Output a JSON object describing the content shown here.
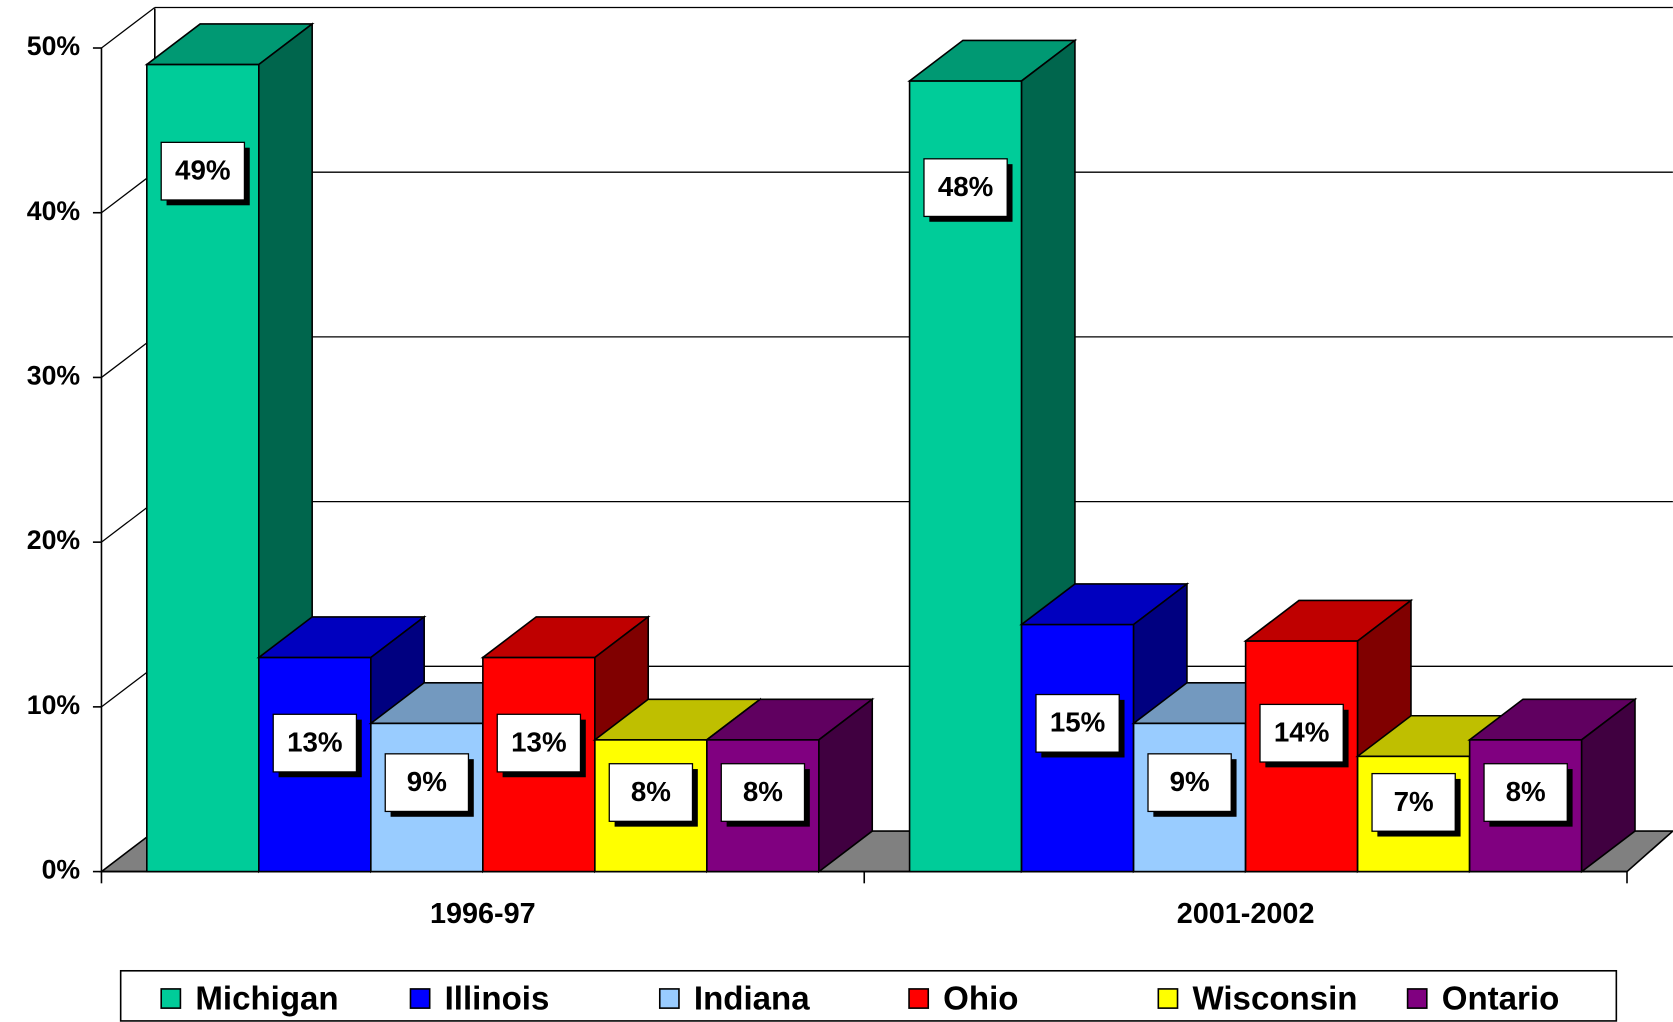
{
  "chart_data": {
    "type": "bar3d",
    "categories": [
      "1996-97",
      "2001-2002"
    ],
    "series": [
      {
        "name": "Michigan",
        "color": "#00cc99",
        "values": [
          49,
          48
        ],
        "value_labels": [
          "49%",
          "48%"
        ]
      },
      {
        "name": "Illinois",
        "color": "#0000ff",
        "values": [
          13,
          15
        ],
        "value_labels": [
          "13%",
          "15%"
        ]
      },
      {
        "name": "Indiana",
        "color": "#99ccff",
        "values": [
          9,
          9
        ],
        "value_labels": [
          "9%",
          "9%"
        ]
      },
      {
        "name": "Ohio",
        "color": "#ff0000",
        "values": [
          13,
          14
        ],
        "value_labels": [
          "13%",
          "14%"
        ]
      },
      {
        "name": "Wisconsin",
        "color": "#ffff00",
        "values": [
          8,
          7
        ],
        "value_labels": [
          "8%",
          "7%"
        ]
      },
      {
        "name": "Ontario",
        "color": "#800080",
        "values": [
          8,
          8
        ],
        "value_labels": [
          "8%",
          "8%"
        ]
      }
    ],
    "ylim": [
      0,
      50
    ],
    "yticks": [
      {
        "value": 0,
        "label": "0%"
      },
      {
        "value": 10,
        "label": "10%"
      },
      {
        "value": 20,
        "label": "20%"
      },
      {
        "value": 30,
        "label": "30%"
      },
      {
        "value": 40,
        "label": "40%"
      },
      {
        "value": 50,
        "label": "50%"
      }
    ],
    "grid": true,
    "legend": "bottom"
  }
}
